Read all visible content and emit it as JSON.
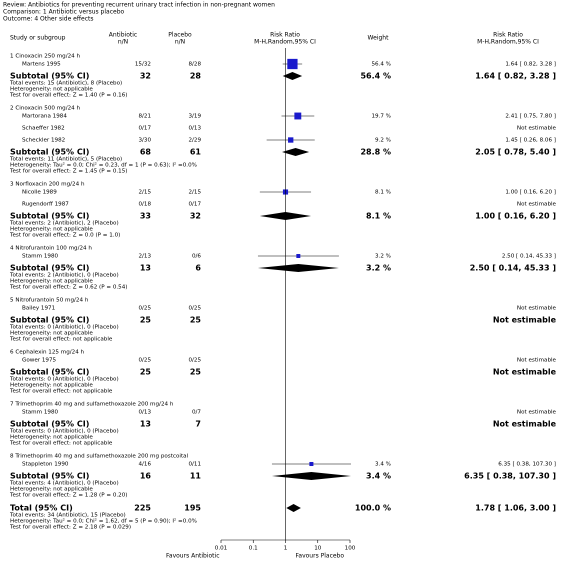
{
  "header": {
    "review": "Review:   Antibiotics for preventing recurrent urinary tract infection in non-pregnant women",
    "comparison": "Comparison:   1 Antibiotic versus placebo",
    "outcome": "Outcome:   4 Other side effects"
  },
  "columns": {
    "study": "Study or subgroup",
    "antibiotic": [
      "Antibiotic",
      "n/N"
    ],
    "placebo": [
      "Placebo",
      "n/N"
    ],
    "plot": [
      "Risk Ratio",
      "M-H,Random,95% CI"
    ],
    "weight": "Weight",
    "ci": [
      "Risk Ratio",
      "M-H,Random,95% CI"
    ]
  },
  "chart_data": {
    "type": "forest",
    "xscale": "log",
    "xlim": [
      0.01,
      100
    ],
    "xticks": [
      0.01,
      0.1,
      1,
      10,
      100
    ],
    "left_label": "Favours Antibiotic",
    "right_label": "Favours Placebo",
    "square_color": "#1a1acc",
    "diamond_color": "#000000",
    "groups": [
      {
        "title": "1 Cinoxacin 250 mg/24 h",
        "studies": [
          {
            "name": "Martens 1995",
            "antibiotic": "15/32",
            "placebo": "8/28",
            "weight": 56.4,
            "weight_label": "56.4 %",
            "ci_label": "1.64 [ 0.82, 3.28 ]",
            "rr": 1.64,
            "lo": 0.82,
            "hi": 3.28
          }
        ],
        "subtotal": {
          "label": "Subtotal (95% CI)",
          "antibiotic": 32,
          "placebo": 28,
          "weight": 56.4,
          "weight_label": "56.4 %",
          "ci_label": "1.64 [ 0.82, 3.28 ]",
          "rr": 1.64,
          "lo": 0.82,
          "hi": 3.28
        },
        "notes": [
          "Total events: 15 (Antibiotic), 8 (Placebo)",
          "Heterogeneity: not applicable",
          "Test for overall effect: Z = 1.40 (P = 0.16)"
        ]
      },
      {
        "title": "2 Cinoxacin 500 mg/24 h",
        "studies": [
          {
            "name": "Martorana 1984",
            "antibiotic": "8/21",
            "placebo": "3/19",
            "weight": 19.7,
            "weight_label": "19.7 %",
            "ci_label": "2.41 [ 0.75, 7.80 ]",
            "rr": 2.41,
            "lo": 0.75,
            "hi": 7.8
          },
          {
            "name": "Schaeffer 1982",
            "antibiotic": "0/17",
            "placebo": "0/13",
            "ci_label": "Not estimable"
          },
          {
            "name": "Scheckler 1982",
            "antibiotic": "3/30",
            "placebo": "2/29",
            "weight": 9.2,
            "weight_label": "9.2 %",
            "ci_label": "1.45 [ 0.26, 8.06 ]",
            "rr": 1.45,
            "lo": 0.26,
            "hi": 8.06
          }
        ],
        "subtotal": {
          "label": "Subtotal (95% CI)",
          "antibiotic": 68,
          "placebo": 61,
          "weight": 28.8,
          "weight_label": "28.8 %",
          "ci_label": "2.05 [ 0.78, 5.40 ]",
          "rr": 2.05,
          "lo": 0.78,
          "hi": 5.4
        },
        "notes": [
          "Total events: 11 (Antibiotic), 5 (Placebo)",
          "Heterogeneity: Tau² = 0.0; Chi² = 0.23, df = 1 (P = 0.63); I² =0.0%",
          "Test for overall effect: Z = 1.45 (P = 0.15)"
        ]
      },
      {
        "title": "3 Norfloxacin 200 mg/24 h",
        "studies": [
          {
            "name": "Nicolle 1989",
            "antibiotic": "2/15",
            "placebo": "2/15",
            "weight": 8.1,
            "weight_label": "8.1 %",
            "ci_label": "1.00 [ 0.16, 6.20 ]",
            "rr": 1,
            "lo": 0.16,
            "hi": 6.2
          },
          {
            "name": "Rugendorff 1987",
            "antibiotic": "0/18",
            "placebo": "0/17",
            "ci_label": "Not estimable"
          }
        ],
        "subtotal": {
          "label": "Subtotal (95% CI)",
          "antibiotic": 33,
          "placebo": 32,
          "weight": 8.1,
          "weight_label": "8.1 %",
          "ci_label": "1.00 [ 0.16, 6.20 ]",
          "rr": 1,
          "lo": 0.16,
          "hi": 6.2
        },
        "notes": [
          "Total events: 2 (Antibiotic), 2 (Placebo)",
          "Heterogeneity: not applicable",
          "Test for overall effect: Z = 0.0 (P = 1.0)"
        ]
      },
      {
        "title": "4 Nitrofurantoin 100 mg/24 h",
        "studies": [
          {
            "name": "Stamm 1980",
            "antibiotic": "2/13",
            "placebo": "0/6",
            "weight": 3.2,
            "weight_label": "3.2 %",
            "ci_label": "2.50 [ 0.14, 45.33 ]",
            "rr": 2.5,
            "lo": 0.14,
            "hi": 45.33
          }
        ],
        "subtotal": {
          "label": "Subtotal (95% CI)",
          "antibiotic": 13,
          "placebo": 6,
          "weight": 3.2,
          "weight_label": "3.2 %",
          "ci_label": "2.50 [ 0.14, 45.33 ]",
          "rr": 2.5,
          "lo": 0.14,
          "hi": 45.33
        },
        "notes": [
          "Total events: 2 (Antibiotic), 0 (Placebo)",
          "Heterogeneity: not applicable",
          "Test for overall effect: Z = 0.62 (P = 0.54)"
        ]
      },
      {
        "title": "5 Nitrofurantoin 50 mg/24 h",
        "studies": [
          {
            "name": "Bailey 1971",
            "antibiotic": "0/25",
            "placebo": "0/25",
            "ci_label": "Not estimable"
          }
        ],
        "subtotal": {
          "label": "Subtotal (95% CI)",
          "antibiotic": 25,
          "placebo": 25,
          "ci_label": "Not estimable"
        },
        "notes": [
          "Total events: 0 (Antibiotic), 0 (Placebo)",
          "Heterogeneity: not applicable",
          "Test for overall effect: not applicable"
        ]
      },
      {
        "title": "6 Cephalexin 125 mg/24 h",
        "studies": [
          {
            "name": "Gower 1975",
            "antibiotic": "0/25",
            "placebo": "0/25",
            "ci_label": "Not estimable"
          }
        ],
        "subtotal": {
          "label": "Subtotal (95% CI)",
          "antibiotic": 25,
          "placebo": 25,
          "ci_label": "Not estimable"
        },
        "notes": [
          "Total events: 0 (Antibiotic), 0 (Placebo)",
          "Heterogeneity: not applicable",
          "Test for overall effect: not applicable"
        ]
      },
      {
        "title": "7 Trimethoprim 40 mg and sulfamethoxazole 200 mg/24 h",
        "studies": [
          {
            "name": "Stamm 1980",
            "antibiotic": "0/13",
            "placebo": "0/7",
            "ci_label": "Not estimable"
          }
        ],
        "subtotal": {
          "label": "Subtotal (95% CI)",
          "antibiotic": 13,
          "placebo": 7,
          "ci_label": "Not estimable"
        },
        "notes": [
          "Total events: 0 (Antibiotic), 0 (Placebo)",
          "Heterogeneity: not applicable",
          "Test for overall effect: not applicable"
        ]
      },
      {
        "title": "8 Trimethoprim 40 mg and sulfamethoxazole 200 mg postcoital",
        "studies": [
          {
            "name": "Stappleton 1990",
            "antibiotic": "4/16",
            "placebo": "0/11",
            "weight": 3.4,
            "weight_label": "3.4 %",
            "ci_label": "6.35 [ 0.38, 107.30 ]",
            "rr": 6.35,
            "lo": 0.38,
            "hi": 107.3
          }
        ],
        "subtotal": {
          "label": "Subtotal (95% CI)",
          "antibiotic": 16,
          "placebo": 11,
          "weight": 3.4,
          "weight_label": "3.4 %",
          "ci_label": "6.35 [ 0.38, 107.30 ]",
          "rr": 6.35,
          "lo": 0.38,
          "hi": 107.3
        },
        "notes": [
          "Total events: 4 (Antibiotic), 0 (Placebo)",
          "Heterogeneity: not applicable",
          "Test for overall effect: Z = 1.28 (P = 0.20)"
        ]
      }
    ],
    "total": {
      "label": "Total (95% CI)",
      "antibiotic": 225,
      "placebo": 195,
      "weight": 100.0,
      "weight_label": "100.0 %",
      "ci_label": "1.78 [ 1.06, 3.00 ]",
      "rr": 1.78,
      "lo": 1.06,
      "hi": 3.0,
      "notes": [
        "Total events: 34 (Antibiotic), 15 (Placebo)",
        "Heterogeneity: Tau² = 0.0; Chi² = 1.62, df = 5 (P = 0.90); I² =0.0%",
        "Test for overall effect: Z = 2.18 (P = 0.029)"
      ]
    }
  }
}
